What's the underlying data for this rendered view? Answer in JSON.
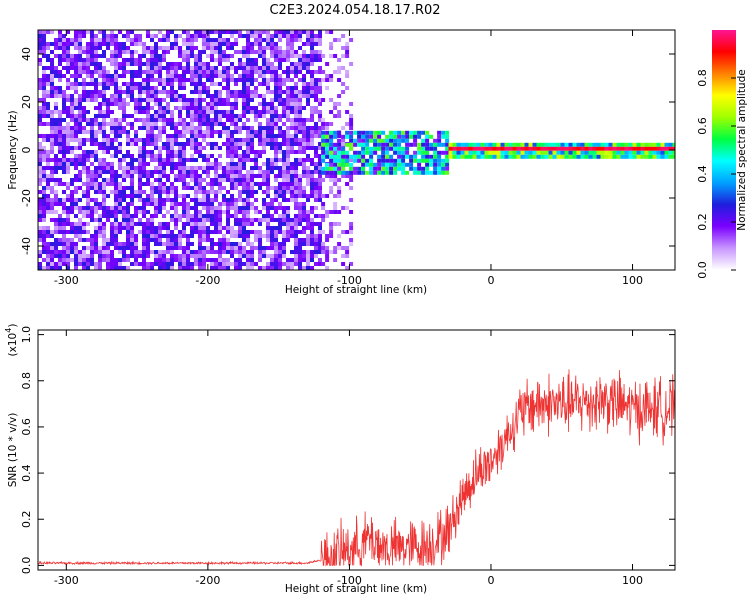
{
  "title": "C2E3.2024.054.18.17.R02",
  "chart_data": [
    {
      "type": "heatmap",
      "xlabel": "Height of straight line (km)",
      "ylabel": "Frequency (Hz)",
      "xlim": [
        -320,
        130
      ],
      "ylim": [
        -50,
        50
      ],
      "xticks": [
        -300,
        -200,
        -100,
        0,
        100
      ],
      "xtick_labels": [
        "-300",
        "-200",
        "-100",
        "0",
        "100"
      ],
      "yticks": [
        -40,
        -20,
        0,
        20,
        40
      ],
      "ytick_labels": [
        "-40",
        "-20",
        "0",
        "20",
        "40"
      ],
      "regions": [
        {
          "x_range": [
            -320,
            -120
          ],
          "freq_range": [
            -50,
            50
          ],
          "amplitude": 0.2
        },
        {
          "x_range": [
            -120,
            -100
          ],
          "freq_range": [
            -50,
            50
          ],
          "amplitude": 0.15
        },
        {
          "x_range": [
            -120,
            -30
          ],
          "freq_range": [
            -10,
            8
          ],
          "amplitude": 0.45
        },
        {
          "x_range": [
            -30,
            130
          ],
          "freq_range": [
            -3,
            3
          ],
          "amplitude": 0.95
        }
      ],
      "colorbar": {
        "label": "Normalized spectral amplitude",
        "ticks": [
          0.0,
          0.2,
          0.4,
          0.6,
          0.8
        ],
        "tick_labels": [
          "0.0",
          "0.2",
          "0.4",
          "0.6",
          "0.8"
        ],
        "range": [
          0,
          1
        ],
        "colors": [
          "#ffffff",
          "#c896ff",
          "#7b00ff",
          "#1e1edc",
          "#00a0ff",
          "#00ffff",
          "#00ff40",
          "#a0ff00",
          "#ffff00",
          "#ff8000",
          "#ff0000",
          "#ff1493"
        ]
      }
    },
    {
      "type": "line",
      "xlabel": "Height of straight line (km)",
      "ylabel": "SNR (10 * v/v)",
      "y_multiplier": "(x10",
      "y_multiplier_exp": "4",
      "y_multiplier_close": ")",
      "xlim": [
        -320,
        130
      ],
      "ylim": [
        -0.02,
        1.02
      ],
      "xticks": [
        -300,
        -200,
        -100,
        0,
        100
      ],
      "xtick_labels": [
        "-300",
        "-200",
        "-100",
        "0",
        "100"
      ],
      "yticks": [
        0.0,
        0.2,
        0.4,
        0.6,
        0.8,
        1.0
      ],
      "ytick_labels": [
        "0.0",
        "0.2",
        "0.4",
        "0.6",
        "0.8",
        "1.0"
      ],
      "series": [
        {
          "color": "#ee3333",
          "x": [
            -320,
            -250,
            -200,
            -150,
            -130,
            -115,
            -105,
            -95,
            -85,
            -75,
            -60,
            -50,
            -40,
            -30,
            -20,
            -10,
            0,
            10,
            20,
            30,
            40,
            60,
            80,
            100,
            130
          ],
          "y": [
            0.01,
            0.01,
            0.01,
            0.01,
            0.01,
            0.03,
            0.06,
            0.08,
            0.12,
            0.07,
            0.08,
            0.08,
            0.1,
            0.15,
            0.3,
            0.4,
            0.45,
            0.55,
            0.65,
            0.7,
            0.7,
            0.7,
            0.72,
            0.68,
            0.68
          ]
        }
      ]
    }
  ]
}
